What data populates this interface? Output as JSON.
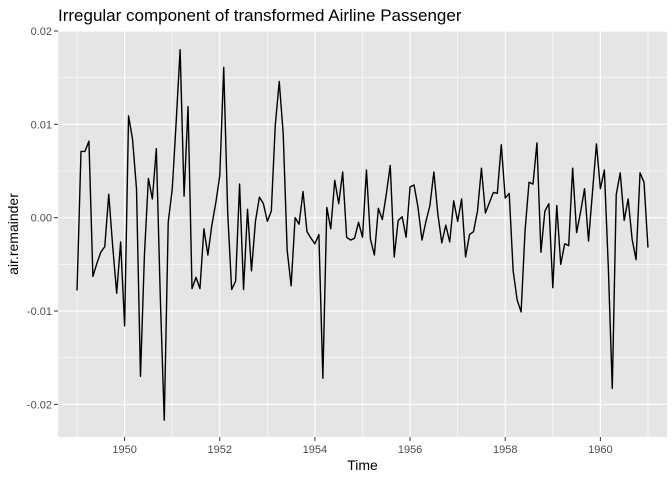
{
  "chart_data": {
    "type": "line",
    "title": "Irregular component of transformed Airline Passenger",
    "xlabel": "Time",
    "ylabel": "air.remainder",
    "xlim": [
      1948.6,
      1961.4
    ],
    "ylim": [
      -0.0235,
      0.02
    ],
    "x_ticks": [
      1950,
      1952,
      1954,
      1956,
      1958,
      1960
    ],
    "x_tick_labels": [
      "1950",
      "1952",
      "1954",
      "1956",
      "1958",
      "1960"
    ],
    "y_ticks": [
      -0.02,
      -0.01,
      0.0,
      0.01,
      0.02
    ],
    "y_tick_labels": [
      "-0.02",
      "-0.01",
      "0.00",
      "0.01",
      "0.02"
    ],
    "grid": true,
    "legend": "none",
    "panel_color": "#e5e5e5",
    "grid_color": "#ffffff",
    "line_color": "#000000",
    "series": [
      {
        "x_start": 1949.0,
        "x_step": 0.0833333,
        "values": [
          -0.0078,
          0.0071,
          0.0071,
          0.0082,
          -0.0063,
          -0.0049,
          -0.0037,
          -0.0031,
          0.0025,
          -0.0031,
          -0.0081,
          -0.0026,
          -0.0116,
          0.0109,
          0.0084,
          0.0031,
          -0.017,
          -0.004,
          0.0042,
          0.002,
          0.0074,
          -0.0085,
          -0.0217,
          -0.0005,
          0.003,
          0.0102,
          0.018,
          0.0023,
          0.0119,
          -0.0076,
          -0.0064,
          -0.0076,
          -0.0012,
          -0.004,
          -0.0008,
          0.0016,
          0.0045,
          0.0161,
          0.0005,
          -0.0077,
          -0.0068,
          0.0036,
          -0.0077,
          0.0009,
          -0.0057,
          -0.0004,
          0.0022,
          0.0015,
          -0.0004,
          0.0007,
          0.0099,
          0.0146,
          0.009,
          -0.0035,
          -0.0073,
          0.0,
          -0.0007,
          0.0028,
          -0.0015,
          -0.0022,
          -0.0028,
          -0.0018,
          -0.0172,
          0.0011,
          -0.0012,
          0.004,
          0.0015,
          0.0049,
          -0.0021,
          -0.0024,
          -0.0022,
          -0.0005,
          -0.0021,
          0.0051,
          -0.0023,
          -0.004,
          0.001,
          -0.0002,
          0.0025,
          0.0056,
          -0.0042,
          -0.0003,
          0.0001,
          -0.0021,
          0.0033,
          0.0035,
          0.0011,
          -0.0024,
          -0.0004,
          0.0013,
          0.0049,
          0.0004,
          -0.0027,
          -0.0008,
          -0.0026,
          0.0018,
          -0.0004,
          0.002,
          -0.0042,
          -0.0018,
          -0.0015,
          0.0007,
          0.0053,
          0.0005,
          0.0016,
          0.0027,
          0.0026,
          0.0078,
          0.0021,
          0.0026,
          -0.0057,
          -0.0088,
          -0.0101,
          -0.0014,
          0.0038,
          0.0036,
          0.008,
          -0.0037,
          0.0007,
          0.0015,
          -0.0075,
          0.0013,
          -0.005,
          -0.0028,
          -0.003,
          0.0053,
          -0.0016,
          0.0006,
          0.0031,
          -0.0025,
          0.0027,
          0.0079,
          0.0031,
          0.0051,
          -0.0053,
          -0.0183,
          0.0025,
          0.0048,
          -0.0003,
          0.002,
          -0.0023,
          -0.0045,
          0.0048,
          0.0038,
          -0.0032
        ]
      }
    ]
  }
}
